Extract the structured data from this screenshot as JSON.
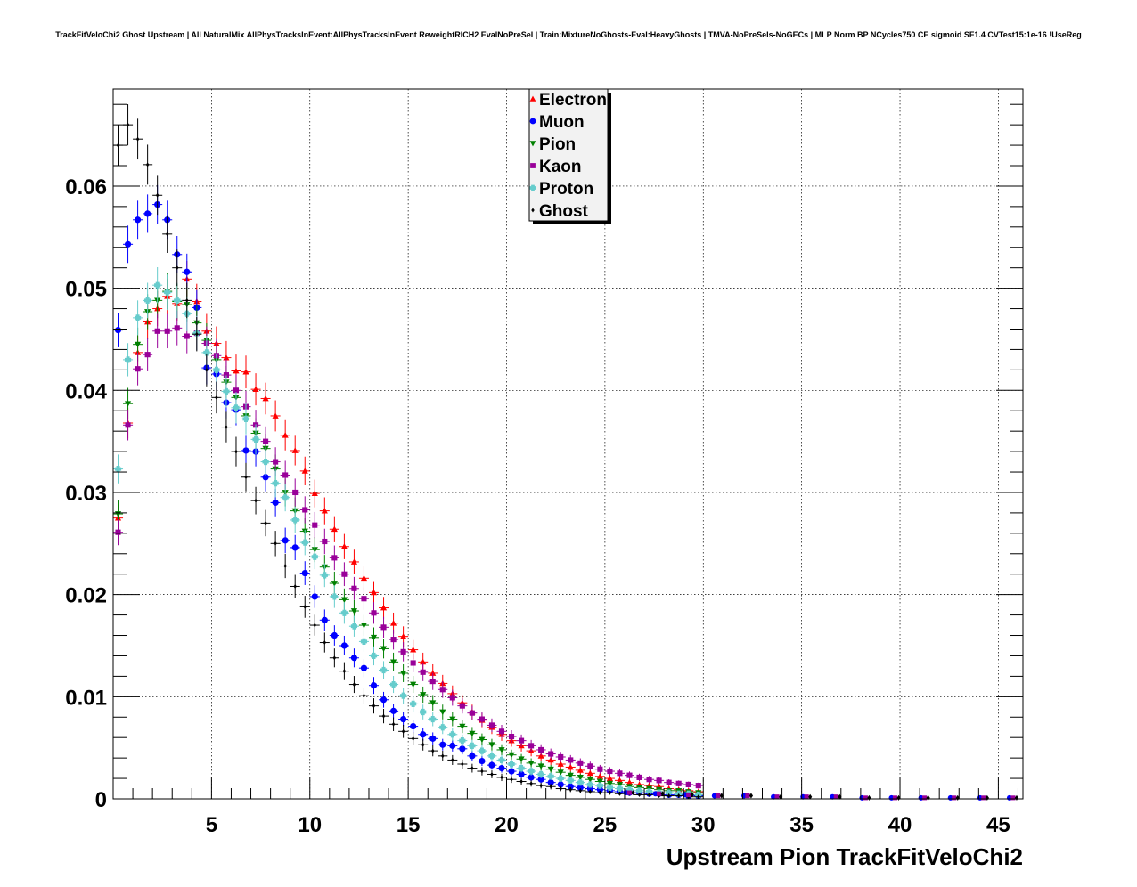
{
  "chart_data": {
    "type": "scatter",
    "title": "TrackFitVeloChi2 Ghost Upstream | All NaturalMix AllPhysTracksInEvent:AllPhysTracksInEvent ReweightRICH2 EvalNoPreSel | Train:MixtureNoGhosts-Eval:HeavyGhosts | TMVA-NoPreSels-NoGECs | MLP Norm BP NCycles750 CE sigmoid SF1.4 CVTest15:1e-16 !UseReg",
    "xlabel": "Upstream Pion TrackFitVeloChi2",
    "ylabel": "",
    "xlim": [
      0,
      46.25
    ],
    "ylim": [
      0,
      0.0695
    ],
    "grid": true,
    "legend_position": "top-center",
    "x_ticks": [
      5,
      10,
      15,
      20,
      25,
      30,
      35,
      40,
      45
    ],
    "x_tick_labels": [
      "5",
      "10",
      "15",
      "20",
      "25",
      "30",
      "35",
      "40",
      "45"
    ],
    "y_ticks": [
      0,
      0.01,
      0.02,
      0.03,
      0.04,
      0.05,
      0.06
    ],
    "y_tick_labels": [
      "0",
      "0.01",
      "0.02",
      "0.03",
      "0.04",
      "0.05",
      "0.06"
    ],
    "bin_width": 0.5,
    "x_first_bin_center": 0.25,
    "series": [
      {
        "name": "Electron",
        "color": "#ff0000",
        "marker": "triangle-up",
        "values": [
          0.0275,
          0.0368,
          0.0437,
          0.0467,
          0.048,
          0.0492,
          0.0485,
          0.0509,
          0.0487,
          0.0458,
          0.0446,
          0.0432,
          0.0419,
          0.0418,
          0.0401,
          0.0392,
          0.0375,
          0.0356,
          0.0341,
          0.0321,
          0.0299,
          0.0282,
          0.0264,
          0.0247,
          0.0232,
          0.0216,
          0.0202,
          0.0187,
          0.0172,
          0.0159,
          0.0146,
          0.0134,
          0.0123,
          0.0113,
          0.0103,
          0.0094,
          0.0085,
          0.0077,
          0.007,
          0.0063,
          0.0057,
          0.0052,
          0.0047,
          0.0042,
          0.0038,
          0.0034,
          0.0031,
          0.0028,
          0.0025,
          0.0022,
          0.002,
          0.0018,
          0.0016,
          0.0014,
          0.0013,
          0.0012,
          0.001,
          0.0009,
          0.0008,
          0.0007
        ]
      },
      {
        "name": "Muon",
        "color": "#0000ff",
        "marker": "circle",
        "values": [
          0.0459,
          0.0543,
          0.0567,
          0.0573,
          0.0582,
          0.0567,
          0.0533,
          0.0516,
          0.0481,
          0.0422,
          0.0416,
          0.0388,
          0.0381,
          0.0341,
          0.034,
          0.0315,
          0.029,
          0.0253,
          0.0246,
          0.0221,
          0.0198,
          0.0175,
          0.016,
          0.015,
          0.0138,
          0.0128,
          0.0111,
          0.0097,
          0.0086,
          0.0078,
          0.0071,
          0.0063,
          0.0059,
          0.0053,
          0.0052,
          0.0049,
          0.0042,
          0.0037,
          0.0033,
          0.003,
          0.0027,
          0.0024,
          0.0021,
          0.0019,
          0.0016,
          0.0014,
          0.0012,
          0.0011,
          0.001,
          0.0009,
          0.0008,
          0.0007,
          0.0006,
          0.0006,
          0.0005,
          0.0005,
          0.0004,
          0.0004,
          0.0003,
          0.0003
        ]
      },
      {
        "name": "Pion",
        "color": "#008000",
        "marker": "triangle-down",
        "values": [
          0.0279,
          0.0387,
          0.0445,
          0.0477,
          0.0488,
          0.0497,
          0.0487,
          0.0484,
          0.0466,
          0.0449,
          0.043,
          0.0408,
          0.0393,
          0.0375,
          0.0358,
          0.0343,
          0.0323,
          0.03,
          0.0282,
          0.0262,
          0.0244,
          0.0227,
          0.0211,
          0.0195,
          0.0184,
          0.017,
          0.0158,
          0.0147,
          0.0134,
          0.0123,
          0.0112,
          0.0102,
          0.0094,
          0.0085,
          0.0078,
          0.0071,
          0.0064,
          0.0058,
          0.0053,
          0.0048,
          0.0043,
          0.0039,
          0.0035,
          0.0032,
          0.0029,
          0.0026,
          0.0023,
          0.0021,
          0.0019,
          0.0017,
          0.0015,
          0.0014,
          0.0012,
          0.0011,
          0.001,
          0.0009,
          0.0008,
          0.0008,
          0.0007,
          0.0006
        ]
      },
      {
        "name": "Kaon",
        "color": "#990099",
        "marker": "square",
        "values": [
          0.0261,
          0.0366,
          0.0421,
          0.0435,
          0.0458,
          0.0458,
          0.0461,
          0.0453,
          0.0456,
          0.0446,
          0.0434,
          0.0415,
          0.04,
          0.0384,
          0.0366,
          0.035,
          0.033,
          0.0317,
          0.03,
          0.0283,
          0.0268,
          0.0252,
          0.0236,
          0.022,
          0.0206,
          0.0196,
          0.0182,
          0.0168,
          0.0156,
          0.0144,
          0.0133,
          0.0124,
          0.0115,
          0.0107,
          0.0099,
          0.0091,
          0.0084,
          0.0078,
          0.0072,
          0.0066,
          0.0061,
          0.0057,
          0.0052,
          0.0048,
          0.0044,
          0.0041,
          0.0038,
          0.0035,
          0.0032,
          0.0029,
          0.0027,
          0.0025,
          0.0023,
          0.0021,
          0.0019,
          0.0018,
          0.0016,
          0.0015,
          0.0014,
          0.0013
        ]
      },
      {
        "name": "Proton",
        "color": "#66cccc",
        "marker": "cross",
        "values": [
          0.0323,
          0.043,
          0.0471,
          0.0488,
          0.0503,
          0.0496,
          0.0488,
          0.0475,
          0.0456,
          0.0437,
          0.042,
          0.0399,
          0.0383,
          0.0372,
          0.0352,
          0.033,
          0.0309,
          0.0295,
          0.0273,
          0.0251,
          0.0237,
          0.0219,
          0.0198,
          0.0182,
          0.0169,
          0.0154,
          0.014,
          0.0126,
          0.0112,
          0.0101,
          0.0093,
          0.0085,
          0.0078,
          0.007,
          0.0063,
          0.0057,
          0.0052,
          0.0047,
          0.0042,
          0.0038,
          0.0034,
          0.003,
          0.0027,
          0.0024,
          0.0022,
          0.002,
          0.0018,
          0.0016,
          0.0014,
          0.0013,
          0.0011,
          0.001,
          0.0009,
          0.0008,
          0.0007,
          0.0006,
          0.0006,
          0.0005,
          0.0005,
          0.0004
        ]
      },
      {
        "name": "Ghost",
        "color": "#000000",
        "marker": "diamond",
        "values": [
          0.064,
          0.066,
          0.0646,
          0.0621,
          0.0591,
          0.0553,
          0.052,
          0.0488,
          0.0455,
          0.042,
          0.0393,
          0.0364,
          0.034,
          0.0315,
          0.0292,
          0.027,
          0.025,
          0.0228,
          0.0208,
          0.0188,
          0.017,
          0.0153,
          0.0138,
          0.0125,
          0.0112,
          0.0101,
          0.0091,
          0.0081,
          0.0073,
          0.0066,
          0.0059,
          0.0053,
          0.0047,
          0.0042,
          0.0038,
          0.0034,
          0.003,
          0.0027,
          0.0024,
          0.0021,
          0.0019,
          0.0017,
          0.0015,
          0.0013,
          0.0012,
          0.001,
          0.0009,
          0.0008,
          0.0007,
          0.0006,
          0.0006,
          0.0005,
          0.0005,
          0.0004,
          0.0004,
          0.0003,
          0.0003,
          0.0003,
          0.0002,
          0.0002
        ]
      }
    ],
    "tail_points": {
      "x": [
        26.25,
        27.75,
        29.25,
        30.75,
        32.25,
        33.75,
        35.25,
        36.75,
        38.25,
        39.75,
        41.25,
        42.75,
        44.25,
        45.75
      ],
      "note": "sparse low-level tail markers near zero",
      "values": [
        0.0006,
        0.0005,
        0.0004,
        0.0003,
        0.0003,
        0.0002,
        0.0002,
        0.0002,
        0.0001,
        0.0001,
        0.0001,
        0.0001,
        0.0001,
        0.0001
      ]
    }
  }
}
